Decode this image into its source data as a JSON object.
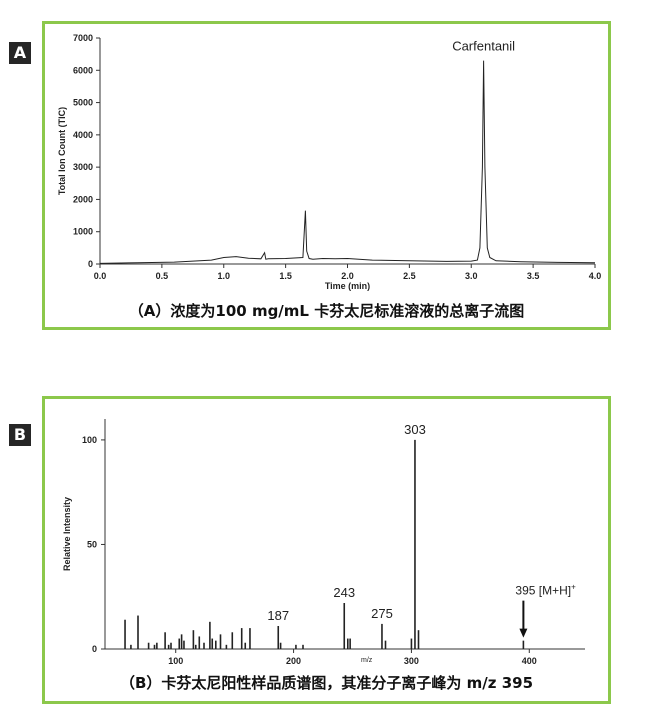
{
  "panels": [
    {
      "letter": "A",
      "caption": "（A）浓度为100 mg/mL 卡芬太尼标准溶液的总离子流图"
    },
    {
      "letter": "B",
      "caption": "（B）卡芬太尼阳性样品质谱图，其准分子离子峰为 m/z 395"
    }
  ],
  "colors": {
    "frame": "#8cc84b",
    "trace": "#222222",
    "letter_bg": "#262626"
  },
  "chart_data": [
    {
      "type": "line",
      "title": "",
      "xlabel": "Time (min)",
      "ylabel": "Total Ion Count (TIC)",
      "xlim": [
        0.0,
        4.0
      ],
      "ylim": [
        0,
        7000
      ],
      "xticks": [
        "0.0",
        "0.5",
        "1.0",
        "1.5",
        "2.0",
        "2.5",
        "3.0",
        "3.5",
        "4.0"
      ],
      "yticks": [
        "0",
        "1000",
        "2000",
        "3000",
        "4000",
        "5000",
        "6000",
        "7000"
      ],
      "annotations": [
        {
          "text": "Carfentanil",
          "x": 3.1,
          "y": 6300
        }
      ],
      "series": [
        {
          "x": [
            0.0,
            0.3,
            0.6,
            0.9,
            1.0,
            1.1,
            1.2,
            1.3,
            1.33,
            1.34,
            1.36,
            1.5,
            1.64,
            1.66,
            1.67,
            1.69,
            1.72,
            1.8,
            1.9,
            2.0,
            2.2,
            2.5,
            2.8,
            3.0,
            3.05,
            3.07,
            3.09,
            3.1,
            3.11,
            3.13,
            3.15,
            3.2,
            3.4,
            3.7,
            4.0
          ],
          "y": [
            20,
            40,
            60,
            120,
            200,
            230,
            180,
            160,
            350,
            150,
            160,
            170,
            200,
            1650,
            400,
            170,
            150,
            170,
            160,
            170,
            120,
            100,
            80,
            90,
            120,
            500,
            3000,
            6300,
            3000,
            500,
            200,
            100,
            70,
            50,
            40
          ]
        }
      ]
    },
    {
      "type": "bar",
      "title": "",
      "xlabel": "m/z",
      "ylabel": "Relative Intensity",
      "xlim": [
        40,
        460
      ],
      "ylim": [
        0,
        110
      ],
      "xticks": [
        "100",
        "200",
        "300",
        "400"
      ],
      "yticks": [
        "0",
        "50",
        "100"
      ],
      "peak_labels": [
        {
          "text": "187",
          "x": 187,
          "y": 11
        },
        {
          "text": "243",
          "x": 243,
          "y": 22
        },
        {
          "text": "275",
          "x": 275,
          "y": 12
        },
        {
          "text": "303",
          "x": 303,
          "y": 100
        },
        {
          "text": "395 [M+H]",
          "sup": "+",
          "x": 395,
          "y": 4
        }
      ],
      "series": [
        {
          "x": [
            57,
            62,
            68,
            77,
            82,
            84,
            91,
            94,
            96,
            103,
            105,
            107,
            115,
            117,
            120,
            124,
            129,
            131,
            134,
            138,
            143,
            148,
            156,
            159,
            163,
            187,
            189,
            202,
            208,
            243,
            246,
            248,
            275,
            278,
            300,
            303,
            306,
            395
          ],
          "values": [
            14,
            2,
            16,
            3,
            2,
            3,
            8,
            2,
            3,
            5,
            7,
            4,
            9,
            2,
            6,
            3,
            13,
            5,
            4,
            7,
            2,
            8,
            10,
            3,
            10,
            11,
            3,
            2,
            2,
            22,
            5,
            5,
            12,
            4,
            5,
            100,
            9,
            4
          ]
        }
      ]
    }
  ]
}
